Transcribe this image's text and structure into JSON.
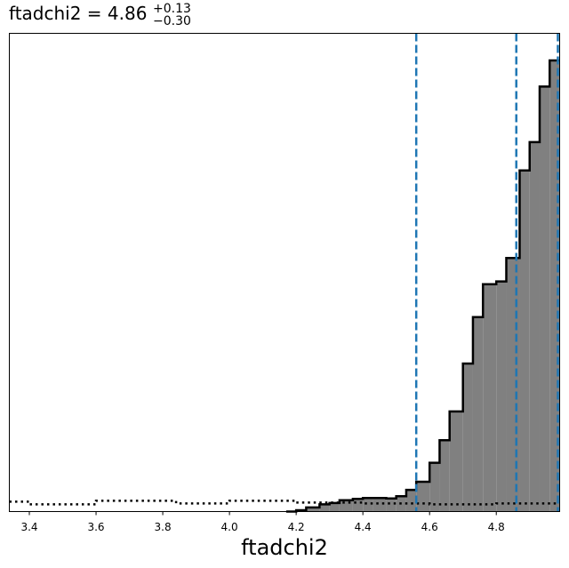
{
  "chart_data": {
    "type": "histogram",
    "title": {
      "param": "ftadchi2",
      "equals": " = ",
      "value": "4.86",
      "upper": "+0.13",
      "lower": "−0.30"
    },
    "xlabel": "ftadchi2",
    "ylabel": "",
    "xlim": [
      3.34,
      4.99
    ],
    "ylim": [
      0,
      1.06
    ],
    "grid": false,
    "x_ticks": [
      {
        "value": 3.4,
        "label": "3.4"
      },
      {
        "value": 3.6,
        "label": "3.6"
      },
      {
        "value": 3.8,
        "label": "3.8"
      },
      {
        "value": 4.0,
        "label": "4.0"
      },
      {
        "value": 4.2,
        "label": "4.2"
      },
      {
        "value": 4.4,
        "label": "4.4"
      },
      {
        "value": 4.6,
        "label": "4.6"
      },
      {
        "value": 4.8,
        "label": "4.8"
      }
    ],
    "posterior": {
      "style": "filled step, gray fill, black outline",
      "fill_color": "#808080",
      "line_color": "#000000",
      "bin_edges": [
        4.17,
        4.2,
        4.23,
        4.27,
        4.3,
        4.33,
        4.37,
        4.4,
        4.43,
        4.47,
        4.5,
        4.53,
        4.56,
        4.6,
        4.63,
        4.66,
        4.7,
        4.73,
        4.76,
        4.8,
        4.83,
        4.87,
        4.9,
        4.93,
        4.96,
        4.99
      ],
      "values": [
        0.0,
        0.003,
        0.009,
        0.016,
        0.019,
        0.025,
        0.028,
        0.03,
        0.03,
        0.029,
        0.034,
        0.048,
        0.066,
        0.108,
        0.158,
        0.222,
        0.328,
        0.431,
        0.504,
        0.51,
        0.562,
        0.756,
        0.819,
        0.942,
        1.0
      ]
    },
    "prior": {
      "style": "dotted step",
      "line_color": "#000000",
      "bin_edges": [
        3.34,
        3.4,
        3.6,
        3.8,
        3.84,
        4.0,
        4.2,
        4.4,
        4.6,
        4.8,
        4.99
      ],
      "values": [
        0.022,
        0.016,
        0.024,
        0.024,
        0.018,
        0.024,
        0.02,
        0.018,
        0.016,
        0.018
      ]
    },
    "markers": {
      "style": "dashed vertical lines",
      "color": "#1f77b4",
      "x": [
        4.56,
        4.86,
        4.99
      ]
    }
  }
}
